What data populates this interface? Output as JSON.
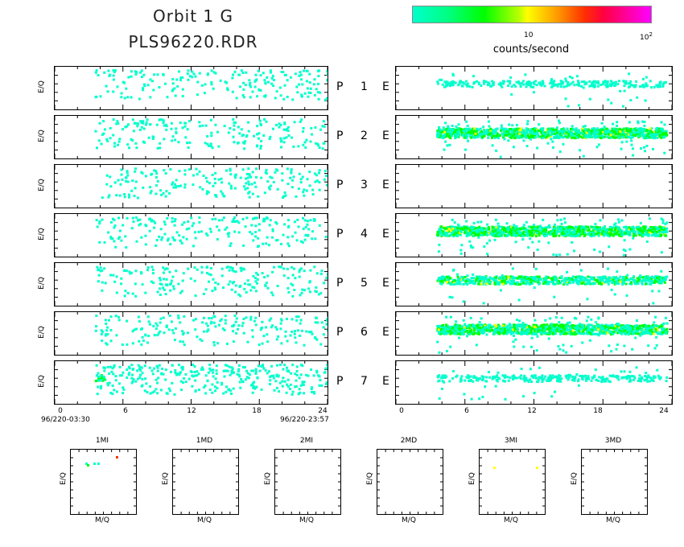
{
  "header": {
    "line1": "Orbit  1  G",
    "line2": "PLS96220.RDR"
  },
  "colorbar": {
    "tick1": "10",
    "tick2_base": "10",
    "tick2_exp": "2",
    "label": "counts/second",
    "colors": [
      "#00ffcc",
      "#00ff00",
      "#ffff00",
      "#ff3000",
      "#ff00ff"
    ]
  },
  "axes": {
    "ylabel": "E/Q",
    "xticks": [
      "0",
      "6",
      "12",
      "18",
      "24"
    ],
    "start_time": "96/220-03:30",
    "end_time": "96/220-23:57"
  },
  "chart_data": [
    {
      "type": "heatmap",
      "title": "",
      "xlabel": "",
      "ylabel": "E/Q",
      "xlim": [
        0,
        24
      ],
      "panels": [
        {
          "row": "P",
          "num": "1",
          "col": "E",
          "left": {
            "x_start": 3.5,
            "x_end": 24,
            "intensity": "sparse"
          },
          "right": {
            "x_start": 3.5,
            "x_end": 23.5,
            "intensity": "low"
          }
        },
        {
          "row": "P",
          "num": "2",
          "col": "E",
          "left": {
            "x_start": 3.5,
            "x_end": 24,
            "intensity": "sparse"
          },
          "right": {
            "x_start": 3.5,
            "x_end": 23.5,
            "intensity": "high"
          }
        },
        {
          "row": "P",
          "num": "3",
          "col": "E",
          "left": {
            "x_start": 3.5,
            "x_end": 24,
            "intensity": "sparse"
          },
          "right": {
            "x_start": 0,
            "x_end": 0,
            "intensity": "none"
          }
        },
        {
          "row": "P",
          "num": "4",
          "col": "E",
          "left": {
            "x_start": 3.5,
            "x_end": 24,
            "intensity": "sparse"
          },
          "right": {
            "x_start": 3.5,
            "x_end": 23.5,
            "intensity": "high"
          }
        },
        {
          "row": "P",
          "num": "5",
          "col": "E",
          "left": {
            "x_start": 3.5,
            "x_end": 24,
            "intensity": "sparse"
          },
          "right": {
            "x_start": 3.5,
            "x_end": 23.5,
            "intensity": "medium"
          }
        },
        {
          "row": "P",
          "num": "6",
          "col": "E",
          "left": {
            "x_start": 3.5,
            "x_end": 24,
            "intensity": "sparse"
          },
          "right": {
            "x_start": 3.5,
            "x_end": 23.5,
            "intensity": "high"
          }
        },
        {
          "row": "P",
          "num": "7",
          "col": "E",
          "left": {
            "x_start": 3.5,
            "x_end": 24,
            "intensity": "medium"
          },
          "right": {
            "x_start": 3.5,
            "x_end": 23.5,
            "intensity": "low"
          }
        }
      ]
    },
    {
      "type": "scatter",
      "xlabel": "M/Q",
      "ylabel": "E/Q",
      "subplots": [
        {
          "title": "1MI",
          "has_points": true
        },
        {
          "title": "1MD",
          "has_points": false
        },
        {
          "title": "2MI",
          "has_points": false
        },
        {
          "title": "2MD",
          "has_points": false
        },
        {
          "title": "3MI",
          "has_points": true
        },
        {
          "title": "3MD",
          "has_points": false
        }
      ]
    }
  ]
}
